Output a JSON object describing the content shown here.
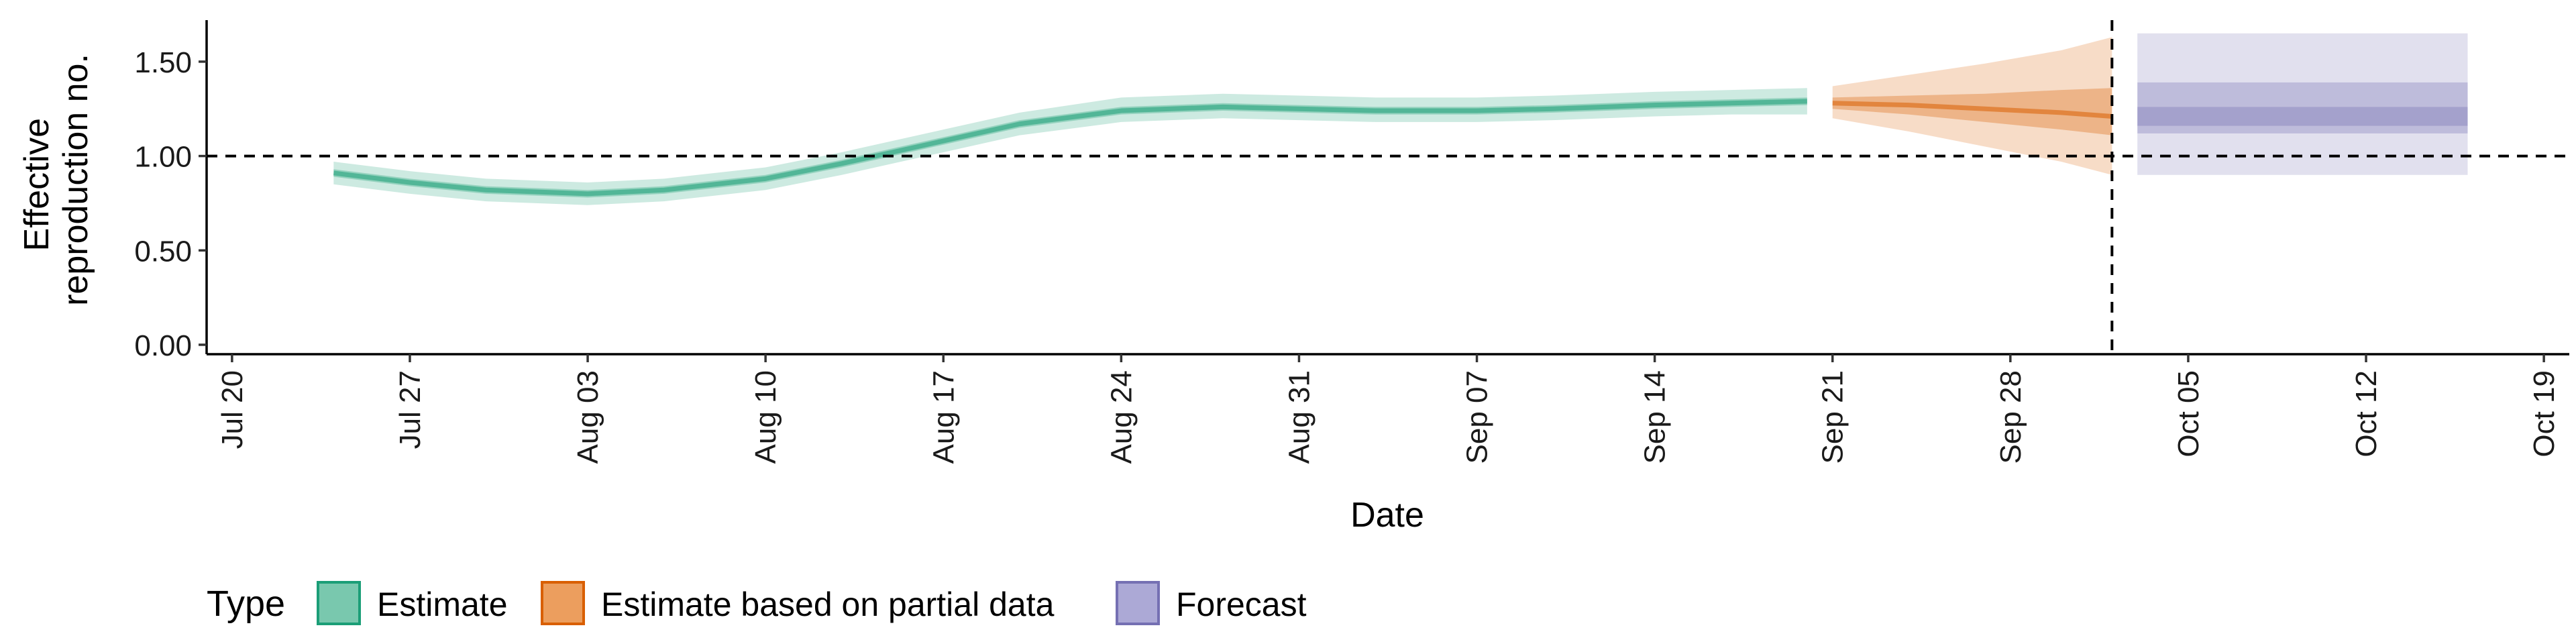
{
  "chart_data": {
    "type": "line",
    "xlabel": "Date",
    "ylabel": "Effective reproduction no.",
    "ylabel_lines": [
      "Effective",
      "reproduction no."
    ],
    "xlim": [
      "2020-07-19",
      "2020-10-20"
    ],
    "ylim": [
      -0.05,
      1.72
    ],
    "x_ticks": [
      {
        "date": "2020-07-20",
        "label": "Jul 20"
      },
      {
        "date": "2020-07-27",
        "label": "Jul 27"
      },
      {
        "date": "2020-08-03",
        "label": "Aug 03"
      },
      {
        "date": "2020-08-10",
        "label": "Aug 10"
      },
      {
        "date": "2020-08-17",
        "label": "Aug 17"
      },
      {
        "date": "2020-08-24",
        "label": "Aug 24"
      },
      {
        "date": "2020-08-31",
        "label": "Aug 31"
      },
      {
        "date": "2020-09-07",
        "label": "Sep 07"
      },
      {
        "date": "2020-09-14",
        "label": "Sep 14"
      },
      {
        "date": "2020-09-21",
        "label": "Sep 21"
      },
      {
        "date": "2020-09-28",
        "label": "Sep 28"
      },
      {
        "date": "2020-10-05",
        "label": "Oct 05"
      },
      {
        "date": "2020-10-12",
        "label": "Oct 12"
      },
      {
        "date": "2020-10-19",
        "label": "Oct 19"
      }
    ],
    "y_ticks": [
      {
        "value": 0.0,
        "label": "0.00"
      },
      {
        "value": 0.5,
        "label": "0.50"
      },
      {
        "value": 1.0,
        "label": "1.00"
      },
      {
        "value": 1.5,
        "label": "1.50"
      }
    ],
    "reference_lines": [
      {
        "axis": "y",
        "value": 1.0,
        "style": "dashed"
      },
      {
        "axis": "x",
        "date": "2020-10-02",
        "style": "dashed"
      }
    ],
    "series": [
      {
        "name": "Estimate",
        "color": "#1b9e77",
        "points": [
          {
            "x": "2020-07-24",
            "median": 0.91,
            "lo50": 0.89,
            "hi50": 0.93,
            "lo90": 0.85,
            "hi90": 0.97
          },
          {
            "x": "2020-07-27",
            "median": 0.86,
            "lo50": 0.84,
            "hi50": 0.88,
            "lo90": 0.8,
            "hi90": 0.92
          },
          {
            "x": "2020-07-30",
            "median": 0.82,
            "lo50": 0.8,
            "hi50": 0.84,
            "lo90": 0.76,
            "hi90": 0.88
          },
          {
            "x": "2020-08-03",
            "median": 0.8,
            "lo50": 0.78,
            "hi50": 0.82,
            "lo90": 0.74,
            "hi90": 0.86
          },
          {
            "x": "2020-08-06",
            "median": 0.82,
            "lo50": 0.8,
            "hi50": 0.84,
            "lo90": 0.76,
            "hi90": 0.88
          },
          {
            "x": "2020-08-10",
            "median": 0.88,
            "lo50": 0.86,
            "hi50": 0.9,
            "lo90": 0.82,
            "hi90": 0.94
          },
          {
            "x": "2020-08-13",
            "median": 0.96,
            "lo50": 0.94,
            "hi50": 0.98,
            "lo90": 0.9,
            "hi90": 1.02
          },
          {
            "x": "2020-08-17",
            "median": 1.08,
            "lo50": 1.06,
            "hi50": 1.1,
            "lo90": 1.02,
            "hi90": 1.14
          },
          {
            "x": "2020-08-20",
            "median": 1.17,
            "lo50": 1.15,
            "hi50": 1.19,
            "lo90": 1.11,
            "hi90": 1.23
          },
          {
            "x": "2020-08-24",
            "median": 1.24,
            "lo50": 1.22,
            "hi50": 1.26,
            "lo90": 1.18,
            "hi90": 1.31
          },
          {
            "x": "2020-08-28",
            "median": 1.26,
            "lo50": 1.24,
            "hi50": 1.28,
            "lo90": 1.2,
            "hi90": 1.33
          },
          {
            "x": "2020-08-31",
            "median": 1.25,
            "lo50": 1.23,
            "hi50": 1.27,
            "lo90": 1.19,
            "hi90": 1.32
          },
          {
            "x": "2020-09-03",
            "median": 1.24,
            "lo50": 1.22,
            "hi50": 1.26,
            "lo90": 1.18,
            "hi90": 1.31
          },
          {
            "x": "2020-09-07",
            "median": 1.24,
            "lo50": 1.22,
            "hi50": 1.26,
            "lo90": 1.18,
            "hi90": 1.31
          },
          {
            "x": "2020-09-10",
            "median": 1.25,
            "lo50": 1.23,
            "hi50": 1.27,
            "lo90": 1.19,
            "hi90": 1.32
          },
          {
            "x": "2020-09-14",
            "median": 1.27,
            "lo50": 1.25,
            "hi50": 1.29,
            "lo90": 1.21,
            "hi90": 1.34
          },
          {
            "x": "2020-09-17",
            "median": 1.28,
            "lo50": 1.26,
            "hi50": 1.3,
            "lo90": 1.22,
            "hi90": 1.35
          },
          {
            "x": "2020-09-20",
            "median": 1.29,
            "lo50": 1.27,
            "hi50": 1.31,
            "lo90": 1.22,
            "hi90": 1.36
          }
        ]
      },
      {
        "name": "Estimate based on partial data",
        "color": "#d95f02",
        "points": [
          {
            "x": "2020-09-21",
            "median": 1.28,
            "lo50": 1.25,
            "hi50": 1.31,
            "lo90": 1.2,
            "hi90": 1.37
          },
          {
            "x": "2020-09-24",
            "median": 1.27,
            "lo50": 1.22,
            "hi50": 1.32,
            "lo90": 1.13,
            "hi90": 1.43
          },
          {
            "x": "2020-09-27",
            "median": 1.25,
            "lo50": 1.18,
            "hi50": 1.33,
            "lo90": 1.05,
            "hi90": 1.49
          },
          {
            "x": "2020-09-30",
            "median": 1.23,
            "lo50": 1.14,
            "hi50": 1.35,
            "lo90": 0.97,
            "hi90": 1.56
          },
          {
            "x": "2020-10-02",
            "median": 1.21,
            "lo50": 1.11,
            "hi50": 1.36,
            "lo90": 0.9,
            "hi90": 1.63
          }
        ]
      },
      {
        "name": "Forecast",
        "color": "#7570b3",
        "points": [
          {
            "x": "2020-10-03",
            "median": 1.21,
            "lo50": 1.12,
            "hi50": 1.39,
            "lo90": 0.9,
            "hi90": 1.65
          },
          {
            "x": "2020-10-16",
            "median": 1.21,
            "lo50": 1.12,
            "hi50": 1.39,
            "lo90": 0.9,
            "hi90": 1.65
          }
        ]
      }
    ],
    "legend": {
      "title": "Type",
      "position": "bottom",
      "items": [
        {
          "label": "Estimate",
          "fill": "#79c8ae",
          "stroke": "#1b9e77"
        },
        {
          "label": "Estimate based on partial data",
          "fill": "#ec9e5e",
          "stroke": "#d95f02"
        },
        {
          "label": "Forecast",
          "fill": "#aca9d6",
          "stroke": "#7570b3"
        }
      ]
    }
  }
}
